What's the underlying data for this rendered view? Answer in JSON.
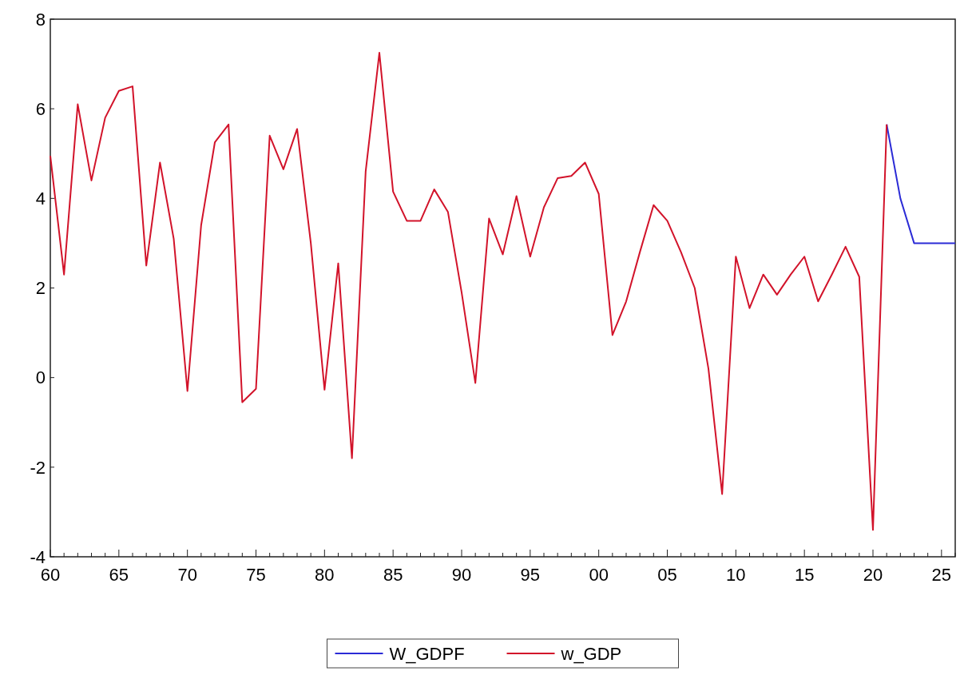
{
  "chart_data": {
    "type": "line",
    "xlim": [
      1960,
      2026
    ],
    "ylim": [
      -4,
      8
    ],
    "yticks": [
      -4,
      -2,
      0,
      2,
      4,
      6,
      8
    ],
    "xticks": [
      {
        "value": 1960,
        "label": "60"
      },
      {
        "value": 1961,
        "label": null
      },
      {
        "value": 1962,
        "label": null
      },
      {
        "value": 1963,
        "label": null
      },
      {
        "value": 1964,
        "label": null
      },
      {
        "value": 1965,
        "label": "65"
      },
      {
        "value": 1966,
        "label": null
      },
      {
        "value": 1967,
        "label": null
      },
      {
        "value": 1968,
        "label": null
      },
      {
        "value": 1969,
        "label": null
      },
      {
        "value": 1970,
        "label": "70"
      },
      {
        "value": 1971,
        "label": null
      },
      {
        "value": 1972,
        "label": null
      },
      {
        "value": 1973,
        "label": null
      },
      {
        "value": 1974,
        "label": null
      },
      {
        "value": 1975,
        "label": "75"
      },
      {
        "value": 1976,
        "label": null
      },
      {
        "value": 1977,
        "label": null
      },
      {
        "value": 1978,
        "label": null
      },
      {
        "value": 1979,
        "label": null
      },
      {
        "value": 1980,
        "label": "80"
      },
      {
        "value": 1981,
        "label": null
      },
      {
        "value": 1982,
        "label": null
      },
      {
        "value": 1983,
        "label": null
      },
      {
        "value": 1984,
        "label": null
      },
      {
        "value": 1985,
        "label": "85"
      },
      {
        "value": 1986,
        "label": null
      },
      {
        "value": 1987,
        "label": null
      },
      {
        "value": 1988,
        "label": null
      },
      {
        "value": 1989,
        "label": null
      },
      {
        "value": 1990,
        "label": "90"
      },
      {
        "value": 1991,
        "label": null
      },
      {
        "value": 1992,
        "label": null
      },
      {
        "value": 1993,
        "label": null
      },
      {
        "value": 1994,
        "label": null
      },
      {
        "value": 1995,
        "label": "95"
      },
      {
        "value": 1996,
        "label": null
      },
      {
        "value": 1997,
        "label": null
      },
      {
        "value": 1998,
        "label": null
      },
      {
        "value": 1999,
        "label": null
      },
      {
        "value": 2000,
        "label": "00"
      },
      {
        "value": 2001,
        "label": null
      },
      {
        "value": 2002,
        "label": null
      },
      {
        "value": 2003,
        "label": null
      },
      {
        "value": 2004,
        "label": null
      },
      {
        "value": 2005,
        "label": "05"
      },
      {
        "value": 2006,
        "label": null
      },
      {
        "value": 2007,
        "label": null
      },
      {
        "value": 2008,
        "label": null
      },
      {
        "value": 2009,
        "label": null
      },
      {
        "value": 2010,
        "label": "10"
      },
      {
        "value": 2011,
        "label": null
      },
      {
        "value": 2012,
        "label": null
      },
      {
        "value": 2013,
        "label": null
      },
      {
        "value": 2014,
        "label": null
      },
      {
        "value": 2015,
        "label": "15"
      },
      {
        "value": 2016,
        "label": null
      },
      {
        "value": 2017,
        "label": null
      },
      {
        "value": 2018,
        "label": null
      },
      {
        "value": 2019,
        "label": null
      },
      {
        "value": 2020,
        "label": "20"
      },
      {
        "value": 2021,
        "label": null
      },
      {
        "value": 2022,
        "label": null
      },
      {
        "value": 2023,
        "label": null
      },
      {
        "value": 2024,
        "label": null
      },
      {
        "value": 2025,
        "label": "25"
      },
      {
        "value": 2026,
        "label": null
      }
    ],
    "legend": "bottom",
    "grid": false,
    "line_style": "solid",
    "series": [
      {
        "name": "W_GDPF",
        "color": "#2b2bd6",
        "x": [
          2021,
          2022,
          2023,
          2024,
          2025,
          2026
        ],
        "values": [
          5.65,
          4.0,
          3.0,
          3.0,
          3.0,
          3.0
        ]
      },
      {
        "name": "w_GDP",
        "color": "#d2132a",
        "x": [
          1960,
          1961,
          1962,
          1963,
          1964,
          1965,
          1966,
          1967,
          1968,
          1969,
          1970,
          1971,
          1972,
          1973,
          1974,
          1975,
          1976,
          1977,
          1978,
          1979,
          1980,
          1981,
          1982,
          1983,
          1984,
          1985,
          1986,
          1987,
          1988,
          1989,
          1990,
          1991,
          1992,
          1993,
          1994,
          1995,
          1996,
          1997,
          1998,
          1999,
          2000,
          2001,
          2002,
          2003,
          2004,
          2005,
          2006,
          2007,
          2008,
          2009,
          2010,
          2011,
          2012,
          2013,
          2014,
          2015,
          2016,
          2017,
          2018,
          2019,
          2020,
          2021
        ],
        "values": [
          4.95,
          2.3,
          6.1,
          4.4,
          5.8,
          6.4,
          6.5,
          2.5,
          4.8,
          3.1,
          -0.3,
          3.4,
          5.25,
          5.65,
          -0.55,
          -0.25,
          5.4,
          4.65,
          5.55,
          3.0,
          -0.27,
          2.55,
          -1.8,
          4.6,
          7.25,
          4.15,
          3.5,
          3.5,
          4.2,
          3.7,
          1.9,
          -0.12,
          3.55,
          2.75,
          4.05,
          2.7,
          3.8,
          4.45,
          4.5,
          4.8,
          4.1,
          0.95,
          1.7,
          2.8,
          3.85,
          3.5,
          2.8,
          2.0,
          0.2,
          -2.6,
          2.7,
          1.55,
          2.3,
          1.85,
          2.3,
          2.7,
          1.7,
          2.3,
          2.92,
          2.25,
          -3.4,
          5.65
        ]
      }
    ]
  }
}
